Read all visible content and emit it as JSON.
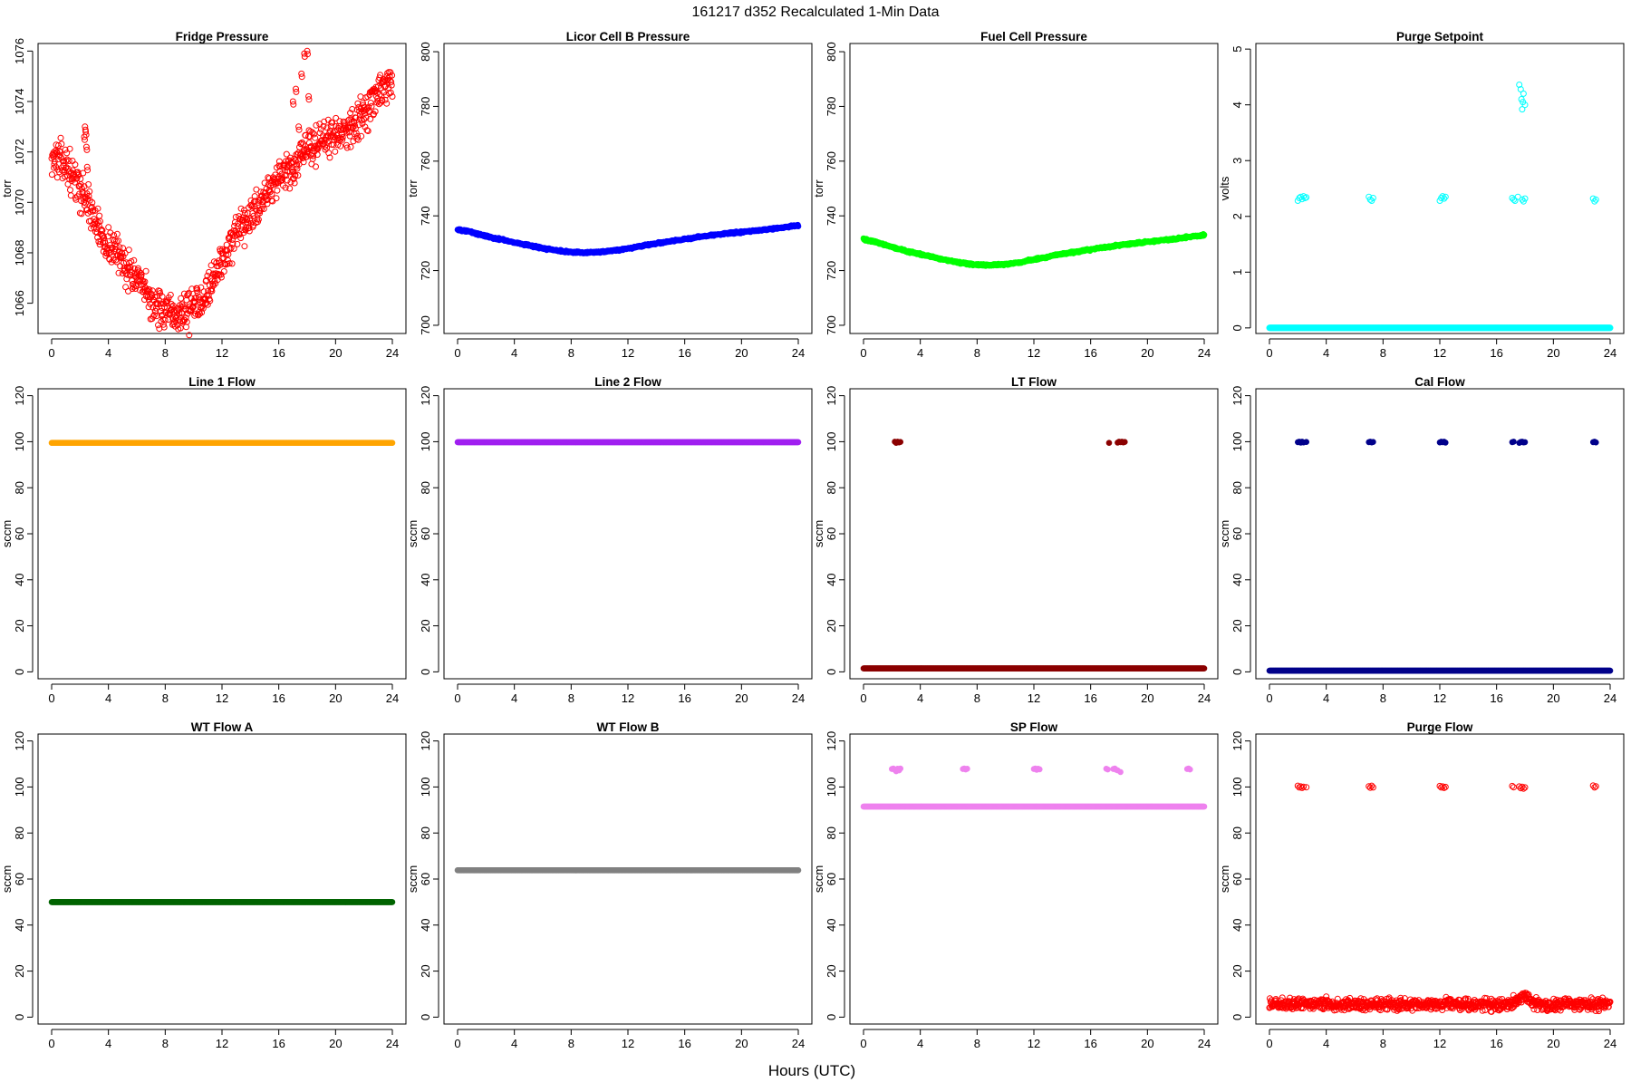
{
  "header": {
    "title": "161217    d352    Recalculated 1-Min Data",
    "xlabel": "Hours (UTC)"
  },
  "chart_data": [
    {
      "type": "scatter",
      "title": "Fridge Pressure",
      "ylabel": "torr",
      "color": "#ff0000",
      "marker": "open-circle",
      "xlim": [
        0,
        24
      ],
      "ylim": [
        1064.8,
        1076.3
      ],
      "xticks": [
        0,
        4,
        8,
        12,
        16,
        20,
        24
      ],
      "yticks": [
        1066,
        1068,
        1070,
        1072,
        1074,
        1076
      ],
      "series": [
        {
          "x": [
            0,
            0.5,
            1,
            1.5,
            2,
            2.3,
            2.5,
            3,
            3.5,
            4,
            4.5,
            5,
            5.5,
            6,
            6.5,
            7,
            7.5,
            8,
            8.5,
            9,
            9.5,
            10,
            10.5,
            11,
            11.5,
            12,
            12.5,
            13,
            13.5,
            14,
            14.5,
            15,
            15.5,
            16,
            16.5,
            17,
            17.3,
            17.6,
            17.8,
            18,
            18.5,
            19,
            19.5,
            20,
            20.5,
            21,
            21.5,
            22,
            22.5,
            23,
            23.5,
            24
          ],
          "y": [
            1071.8,
            1071.7,
            1071.5,
            1071.0,
            1070.5,
            1070.3,
            1070.1,
            1069.3,
            1068.7,
            1068.3,
            1068.1,
            1067.7,
            1067.3,
            1066.9,
            1066.5,
            1066.1,
            1065.8,
            1065.6,
            1065.5,
            1065.6,
            1065.7,
            1065.9,
            1066.2,
            1066.6,
            1067.1,
            1067.7,
            1068.2,
            1068.6,
            1069.0,
            1069.4,
            1069.8,
            1070.3,
            1070.7,
            1071.0,
            1071.1,
            1071.3,
            1071.5,
            1071.8,
            1072.0,
            1072.2,
            1072.3,
            1072.4,
            1072.6,
            1072.7,
            1072.9,
            1073.0,
            1073.2,
            1073.5,
            1073.9,
            1074.3,
            1074.5,
            1074.8
          ]
        }
      ],
      "excursions": [
        {
          "x": [
            2.3,
            2.35,
            2.4,
            2.45,
            2.5
          ],
          "y": [
            1072.6,
            1073.0,
            1072.8,
            1072.2,
            1071.4
          ]
        },
        {
          "x": [
            17.0,
            17.2,
            17.4,
            17.6,
            17.8,
            18.0,
            18.1
          ],
          "y": [
            1074.0,
            1074.5,
            1073.0,
            1075.1,
            1075.9,
            1076.0,
            1074.2
          ]
        }
      ]
    },
    {
      "type": "scatter",
      "title": "Licor Cell B Pressure",
      "ylabel": "torr",
      "color": "#0000ff",
      "marker": "filled-band",
      "xlim": [
        0,
        24
      ],
      "ylim": [
        697,
        803
      ],
      "xticks": [
        0,
        4,
        8,
        12,
        16,
        20,
        24
      ],
      "yticks": [
        700,
        720,
        740,
        760,
        780,
        800
      ],
      "series": [
        {
          "x": [
            0,
            1,
            2,
            3,
            4,
            5,
            6,
            7,
            8,
            9,
            10,
            11,
            12,
            13,
            14,
            15,
            16,
            17,
            18,
            19,
            20,
            21,
            22,
            23,
            24
          ],
          "y": [
            735.0,
            734.0,
            732.6,
            731.4,
            730.3,
            729.2,
            728.2,
            727.3,
            726.7,
            726.6,
            726.8,
            727.3,
            728.0,
            729.0,
            729.9,
            730.7,
            731.5,
            732.3,
            733.0,
            733.6,
            734.1,
            734.6,
            735.2,
            735.8,
            736.5
          ]
        }
      ]
    },
    {
      "type": "scatter",
      "title": "Fuel Cell Pressure",
      "ylabel": "torr",
      "color": "#00ff00",
      "marker": "filled-band",
      "xlim": [
        0,
        24
      ],
      "ylim": [
        697,
        803
      ],
      "xticks": [
        0,
        4,
        8,
        12,
        16,
        20,
        24
      ],
      "yticks": [
        700,
        720,
        740,
        760,
        780,
        800
      ],
      "series": [
        {
          "x": [
            0,
            1,
            2,
            3,
            4,
            5,
            6,
            7,
            8,
            9,
            10,
            11,
            12,
            13,
            14,
            15,
            16,
            17,
            18,
            19,
            20,
            21,
            22,
            23,
            24
          ],
          "y": [
            731.5,
            730.2,
            728.6,
            727.1,
            726.0,
            724.8,
            723.6,
            722.7,
            722.1,
            722.0,
            722.3,
            723.0,
            724.0,
            725.1,
            726.1,
            726.9,
            727.7,
            728.5,
            729.3,
            729.9,
            730.5,
            731.1,
            731.6,
            732.3,
            733.0
          ]
        }
      ]
    },
    {
      "type": "scatter",
      "title": "Purge Setpoint",
      "ylabel": "volts",
      "color": "#00ffff",
      "marker": "open-circle",
      "xlim": [
        0,
        24
      ],
      "ylim": [
        -0.1,
        5.1
      ],
      "xticks": [
        0,
        4,
        8,
        12,
        16,
        20,
        24
      ],
      "yticks": [
        0,
        1,
        2,
        3,
        4,
        5
      ],
      "series": [
        {
          "x": [
            0,
            24
          ],
          "y": [
            0,
            0
          ]
        }
      ],
      "clusters": [
        {
          "x": [
            2.0,
            2.1,
            2.2,
            2.3,
            2.4,
            2.5,
            2.6
          ],
          "y": [
            2.28,
            2.33,
            2.35,
            2.31,
            2.36,
            2.33,
            2.34
          ]
        },
        {
          "x": [
            7.0,
            7.1,
            7.2,
            7.3
          ],
          "y": [
            2.35,
            2.3,
            2.28,
            2.33
          ]
        },
        {
          "x": [
            12.0,
            12.1,
            12.2,
            12.3,
            12.4
          ],
          "y": [
            2.28,
            2.33,
            2.36,
            2.32,
            2.35
          ]
        },
        {
          "x": [
            17.1,
            17.2,
            17.3,
            17.5,
            17.8,
            17.9,
            18.0
          ],
          "y": [
            2.33,
            2.3,
            2.28,
            2.35,
            2.3,
            2.27,
            2.32
          ]
        },
        {
          "x": [
            17.6,
            17.7,
            17.75,
            17.8,
            17.85,
            17.9,
            18.0
          ],
          "y": [
            4.36,
            4.28,
            4.1,
            3.92,
            4.05,
            4.2,
            4.0
          ]
        },
        {
          "x": [
            22.8,
            22.9,
            23.0
          ],
          "y": [
            2.32,
            2.27,
            2.3
          ]
        }
      ]
    },
    {
      "type": "scatter",
      "title": "Line 1 Flow",
      "ylabel": "sccm",
      "color": "#ffa500",
      "marker": "filled-band",
      "xlim": [
        0,
        24
      ],
      "ylim": [
        -3,
        123
      ],
      "xticks": [
        0,
        4,
        8,
        12,
        16,
        20,
        24
      ],
      "yticks": [
        0,
        20,
        40,
        60,
        80,
        100,
        120
      ],
      "series": [
        {
          "x": [
            0,
            24
          ],
          "y": [
            99.5,
            99.5
          ]
        }
      ]
    },
    {
      "type": "scatter",
      "title": "Line 2 Flow",
      "ylabel": "sccm",
      "color": "#a020f0",
      "marker": "filled-band",
      "xlim": [
        0,
        24
      ],
      "ylim": [
        -3,
        123
      ],
      "xticks": [
        0,
        4,
        8,
        12,
        16,
        20,
        24
      ],
      "yticks": [
        0,
        20,
        40,
        60,
        80,
        100,
        120
      ],
      "series": [
        {
          "x": [
            0,
            24
          ],
          "y": [
            99.8,
            99.8
          ]
        }
      ]
    },
    {
      "type": "scatter",
      "title": "LT Flow",
      "ylabel": "sccm",
      "color": "#8b0000",
      "marker": "filled-band",
      "xlim": [
        0,
        24
      ],
      "ylim": [
        -3,
        123
      ],
      "xticks": [
        0,
        4,
        8,
        12,
        16,
        20,
        24
      ],
      "yticks": [
        0,
        20,
        40,
        60,
        80,
        100,
        120
      ],
      "series": [
        {
          "x": [
            0,
            24
          ],
          "y": [
            1.5,
            1.5
          ]
        }
      ],
      "clusters": [
        {
          "x": [
            2.2,
            2.3,
            2.4,
            2.5,
            2.6
          ],
          "y": [
            100,
            99.5,
            100,
            99.7,
            99.9
          ]
        },
        {
          "x": [
            17.3
          ],
          "y": [
            99.5
          ]
        },
        {
          "x": [
            17.9,
            18.0,
            18.1,
            18.2,
            18.3,
            18.4
          ],
          "y": [
            99.6,
            100,
            99.8,
            100,
            99.7,
            99.9
          ]
        }
      ]
    },
    {
      "type": "scatter",
      "title": "Cal Flow",
      "ylabel": "sccm",
      "color": "#00008b",
      "marker": "filled-band",
      "xlim": [
        0,
        24
      ],
      "ylim": [
        -3,
        123
      ],
      "xticks": [
        0,
        4,
        8,
        12,
        16,
        20,
        24
      ],
      "yticks": [
        0,
        20,
        40,
        60,
        80,
        100,
        120
      ],
      "series": [
        {
          "x": [
            0,
            24
          ],
          "y": [
            0.5,
            0.5
          ]
        }
      ],
      "clusters": [
        {
          "x": [
            2.0,
            2.1,
            2.2,
            2.3,
            2.4,
            2.6
          ],
          "y": [
            99.8,
            100,
            99.6,
            100,
            99.7,
            99.9
          ]
        },
        {
          "x": [
            7.0,
            7.1,
            7.2,
            7.3
          ],
          "y": [
            99.8,
            100,
            99.7,
            99.9
          ]
        },
        {
          "x": [
            12.0,
            12.1,
            12.2,
            12.3,
            12.4
          ],
          "y": [
            99.7,
            100,
            99.8,
            100,
            99.6
          ]
        },
        {
          "x": [
            17.1,
            17.2,
            17.6,
            17.7,
            17.8,
            17.9,
            18.0
          ],
          "y": [
            99.8,
            100,
            99.5,
            99.9,
            100,
            99.7,
            99.8
          ]
        },
        {
          "x": [
            22.8,
            22.9,
            23.0
          ],
          "y": [
            99.8,
            100,
            99.7
          ]
        }
      ]
    },
    {
      "type": "scatter",
      "title": "WT Flow A",
      "ylabel": "sccm",
      "color": "#006400",
      "marker": "filled-band",
      "xlim": [
        0,
        24
      ],
      "ylim": [
        -3,
        123
      ],
      "xticks": [
        0,
        4,
        8,
        12,
        16,
        20,
        24
      ],
      "yticks": [
        0,
        20,
        40,
        60,
        80,
        100,
        120
      ],
      "series": [
        {
          "x": [
            0,
            24
          ],
          "y": [
            50,
            50
          ]
        }
      ]
    },
    {
      "type": "scatter",
      "title": "WT Flow B",
      "ylabel": "sccm",
      "color": "#808080",
      "marker": "filled-band",
      "xlim": [
        0,
        24
      ],
      "ylim": [
        -3,
        123
      ],
      "xticks": [
        0,
        4,
        8,
        12,
        16,
        20,
        24
      ],
      "yticks": [
        0,
        20,
        40,
        60,
        80,
        100,
        120
      ],
      "series": [
        {
          "x": [
            0,
            24
          ],
          "y": [
            63.8,
            63.8
          ]
        }
      ]
    },
    {
      "type": "scatter",
      "title": "SP Flow",
      "ylabel": "sccm",
      "color": "#ee82ee",
      "marker": "filled-band",
      "xlim": [
        0,
        24
      ],
      "ylim": [
        -3,
        123
      ],
      "xticks": [
        0,
        4,
        8,
        12,
        16,
        20,
        24
      ],
      "yticks": [
        0,
        20,
        40,
        60,
        80,
        100,
        120
      ],
      "series": [
        {
          "x": [
            0,
            24
          ],
          "y": [
            91.5,
            91.5
          ]
        }
      ],
      "clusters": [
        {
          "x": [
            2.0,
            2.1,
            2.2,
            2.3,
            2.4,
            2.5,
            2.6
          ],
          "y": [
            107.8,
            108,
            107.5,
            106.8,
            107.9,
            107.2,
            108.0
          ]
        },
        {
          "x": [
            7.0,
            7.1,
            7.2,
            7.3
          ],
          "y": [
            107.8,
            108,
            107.6,
            107.9
          ]
        },
        {
          "x": [
            12.0,
            12.1,
            12.2,
            12.3,
            12.4
          ],
          "y": [
            107.8,
            108,
            107.5,
            107.9,
            107.7
          ]
        },
        {
          "x": [
            17.1,
            17.2,
            17.6,
            17.7,
            17.8,
            17.9,
            18.1
          ],
          "y": [
            107.9,
            107.6,
            107.8,
            108,
            107.5,
            107.2,
            106.5
          ]
        },
        {
          "x": [
            22.8,
            22.9,
            23.0
          ],
          "y": [
            107.8,
            108,
            107.6
          ]
        }
      ]
    },
    {
      "type": "scatter",
      "title": "Purge Flow",
      "ylabel": "sccm",
      "color": "#ff0000",
      "marker": "open-circle",
      "xlim": [
        0,
        24
      ],
      "ylim": [
        -3,
        123
      ],
      "xticks": [
        0,
        4,
        8,
        12,
        16,
        20,
        24
      ],
      "yticks": [
        0,
        20,
        40,
        60,
        80,
        100,
        120
      ],
      "series": [
        {
          "x": [
            0,
            2,
            4,
            6,
            8,
            10,
            12,
            14,
            16,
            17,
            17.6,
            18,
            18.5,
            19,
            20,
            22,
            24
          ],
          "y": [
            5.5,
            5.8,
            5.6,
            5.4,
            5.5,
            5.6,
            5.7,
            5.5,
            5.6,
            5.4,
            8.0,
            9.5,
            7.0,
            5.5,
            5.3,
            5.5,
            5.6
          ]
        }
      ],
      "clusters": [
        {
          "x": [
            2.0,
            2.1,
            2.2,
            2.3,
            2.4,
            2.6
          ],
          "y": [
            100.5,
            99.8,
            100.2,
            99.6,
            100.1,
            99.9
          ]
        },
        {
          "x": [
            7.0,
            7.1,
            7.2,
            7.3
          ],
          "y": [
            100.3,
            99.7,
            100.5,
            99.8
          ]
        },
        {
          "x": [
            12.0,
            12.1,
            12.2,
            12.3,
            12.4
          ],
          "y": [
            100.4,
            99.8,
            100.2,
            99.6,
            100
          ]
        },
        {
          "x": [
            17.1,
            17.2,
            17.6,
            17.7,
            17.8,
            17.9,
            18.0
          ],
          "y": [
            100.4,
            99.9,
            100.2,
            99.5,
            100.1,
            99.3,
            99.8
          ]
        },
        {
          "x": [
            22.8,
            22.9,
            23.0
          ],
          "y": [
            100.6,
            99.8,
            100.3
          ]
        }
      ]
    }
  ]
}
